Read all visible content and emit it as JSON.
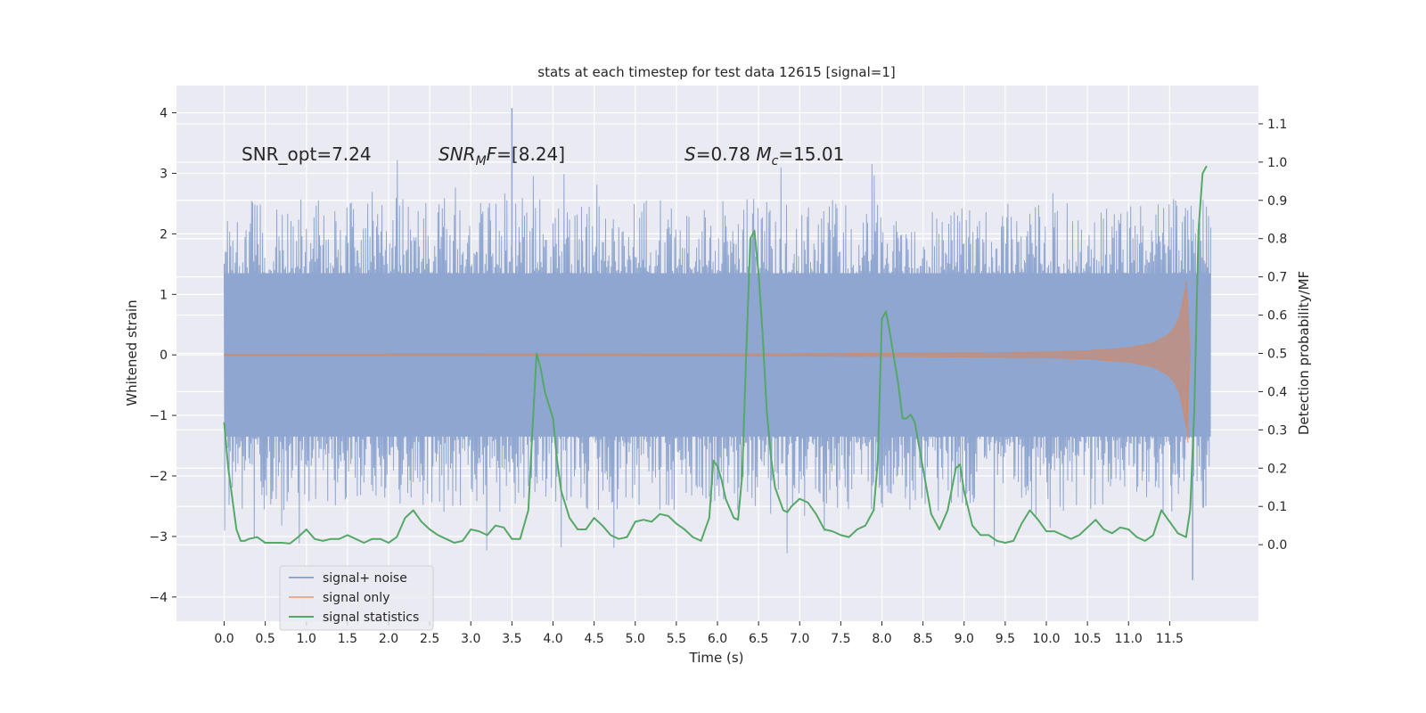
{
  "chart_data": {
    "type": "line",
    "title": "stats at each timestep for test data 12615 [signal=1]",
    "xlabel": "Time (s)",
    "ylabel": "Whitened strain",
    "ylabel_right": "Detection probability/MF",
    "xlim": [
      -0.58,
      12.58
    ],
    "ylim": [
      -4.4,
      4.45
    ],
    "ylim_right": [
      -0.2,
      1.2
    ],
    "x_ticks": [
      0.0,
      0.5,
      1.0,
      1.5,
      2.0,
      2.5,
      3.0,
      3.5,
      4.0,
      4.5,
      5.0,
      5.5,
      6.0,
      6.5,
      7.0,
      7.5,
      8.0,
      8.5,
      9.0,
      9.5,
      10.0,
      10.5,
      11.0,
      11.5
    ],
    "x_tick_labels": [
      "0.0",
      "0.5",
      "1.0",
      "1.5",
      "2.0",
      "2.5",
      "3.0",
      "3.5",
      "4.0",
      "4.5",
      "5.0",
      "5.5",
      "6.0",
      "6.5",
      "7.0",
      "7.5",
      "8.0",
      "8.5",
      "9.0",
      "9.5",
      "10.0",
      "10.5",
      "11.0",
      "11.5"
    ],
    "y_ticks": [
      4,
      3,
      2,
      1,
      0,
      -1,
      -2,
      -3,
      -4
    ],
    "y_tick_labels": [
      "4",
      "3",
      "2",
      "1",
      "0",
      "−1",
      "−2",
      "−3",
      "−4"
    ],
    "y_ticks_right": [
      1.1,
      1.0,
      0.9,
      0.8,
      0.7,
      0.6,
      0.5,
      0.4,
      0.3,
      0.2,
      0.1,
      0.0
    ],
    "y_tick_labels_right": [
      "1.1",
      "1.0",
      "0.9",
      "0.8",
      "0.7",
      "0.6",
      "0.5",
      "0.4",
      "0.3",
      "0.2",
      "0.1",
      "0.0"
    ],
    "grid": true,
    "legend_position": "lower-left",
    "annotations": [
      "SNR_opt=7.24",
      "SNR_MF=[8.24]",
      "S=0.78   M_c=15.01"
    ],
    "colors": {
      "background": "#eaeaf2",
      "grid": "#ffffff",
      "noise": "#8fa6d0",
      "signal": "#dd8452",
      "stats": "#55a868"
    },
    "series": [
      {
        "name": "signal+ noise",
        "axis": "left",
        "description_values": {
          "t_start": 0.0,
          "t_end": 12.0,
          "band_low": -1.35,
          "band_high": 1.35,
          "peak_max": 4.08,
          "peak_max_x": 3.5,
          "peak_min": -3.72,
          "peak_min_x": 11.78
        }
      },
      {
        "name": "signal only",
        "axis": "left",
        "envelope_x": [
          0.0,
          4.0,
          7.0,
          9.0,
          10.0,
          10.5,
          11.0,
          11.3,
          11.5,
          11.6,
          11.65,
          11.7,
          11.72,
          11.75
        ],
        "envelope_amp": [
          0.01,
          0.015,
          0.02,
          0.035,
          0.05,
          0.07,
          0.12,
          0.2,
          0.35,
          0.55,
          0.8,
          1.3,
          1.0,
          0.0
        ]
      },
      {
        "name": "signal statistics",
        "axis": "right",
        "x": [
          0.0,
          0.05,
          0.1,
          0.15,
          0.2,
          0.25,
          0.3,
          0.4,
          0.5,
          0.6,
          0.7,
          0.8,
          0.9,
          1.0,
          1.1,
          1.2,
          1.3,
          1.4,
          1.5,
          1.6,
          1.7,
          1.8,
          1.9,
          2.0,
          2.1,
          2.2,
          2.3,
          2.4,
          2.5,
          2.6,
          2.7,
          2.8,
          2.9,
          3.0,
          3.1,
          3.2,
          3.3,
          3.4,
          3.5,
          3.6,
          3.7,
          3.75,
          3.8,
          3.85,
          3.9,
          4.0,
          4.05,
          4.1,
          4.2,
          4.3,
          4.4,
          4.5,
          4.6,
          4.7,
          4.8,
          4.9,
          5.0,
          5.1,
          5.2,
          5.3,
          5.4,
          5.5,
          5.6,
          5.7,
          5.8,
          5.9,
          5.95,
          6.0,
          6.05,
          6.1,
          6.2,
          6.25,
          6.3,
          6.35,
          6.4,
          6.45,
          6.5,
          6.55,
          6.6,
          6.65,
          6.7,
          6.8,
          6.85,
          6.9,
          7.0,
          7.1,
          7.2,
          7.3,
          7.4,
          7.5,
          7.6,
          7.7,
          7.8,
          7.9,
          7.95,
          8.0,
          8.05,
          8.1,
          8.2,
          8.25,
          8.3,
          8.35,
          8.4,
          8.5,
          8.6,
          8.7,
          8.8,
          8.9,
          8.95,
          9.0,
          9.1,
          9.2,
          9.3,
          9.4,
          9.5,
          9.6,
          9.7,
          9.8,
          9.9,
          10.0,
          10.1,
          10.2,
          10.3,
          10.4,
          10.5,
          10.6,
          10.7,
          10.8,
          10.9,
          11.0,
          11.1,
          11.2,
          11.3,
          11.4,
          11.5,
          11.6,
          11.7,
          11.75,
          11.8,
          11.85,
          11.9,
          11.95
        ],
        "values": [
          0.32,
          0.2,
          0.12,
          0.04,
          0.01,
          0.01,
          0.015,
          0.02,
          0.005,
          0.005,
          0.005,
          0.003,
          0.02,
          0.04,
          0.015,
          0.01,
          0.015,
          0.015,
          0.025,
          0.015,
          0.005,
          0.015,
          0.015,
          0.005,
          0.02,
          0.07,
          0.09,
          0.06,
          0.04,
          0.025,
          0.015,
          0.005,
          0.01,
          0.04,
          0.035,
          0.025,
          0.05,
          0.045,
          0.015,
          0.015,
          0.09,
          0.3,
          0.5,
          0.46,
          0.4,
          0.33,
          0.22,
          0.14,
          0.07,
          0.04,
          0.04,
          0.07,
          0.05,
          0.025,
          0.015,
          0.02,
          0.06,
          0.065,
          0.06,
          0.08,
          0.075,
          0.055,
          0.04,
          0.02,
          0.01,
          0.07,
          0.22,
          0.205,
          0.17,
          0.12,
          0.07,
          0.065,
          0.18,
          0.5,
          0.8,
          0.82,
          0.71,
          0.55,
          0.35,
          0.23,
          0.15,
          0.09,
          0.085,
          0.1,
          0.12,
          0.11,
          0.08,
          0.04,
          0.035,
          0.025,
          0.02,
          0.04,
          0.05,
          0.09,
          0.22,
          0.59,
          0.61,
          0.55,
          0.42,
          0.33,
          0.33,
          0.34,
          0.32,
          0.2,
          0.08,
          0.04,
          0.09,
          0.2,
          0.21,
          0.14,
          0.05,
          0.025,
          0.025,
          0.01,
          0.005,
          0.01,
          0.055,
          0.09,
          0.065,
          0.035,
          0.035,
          0.025,
          0.015,
          0.025,
          0.045,
          0.065,
          0.04,
          0.03,
          0.045,
          0.04,
          0.02,
          0.01,
          0.025,
          0.09,
          0.06,
          0.03,
          0.02,
          0.09,
          0.35,
          0.82,
          0.97,
          0.99
        ]
      }
    ]
  }
}
